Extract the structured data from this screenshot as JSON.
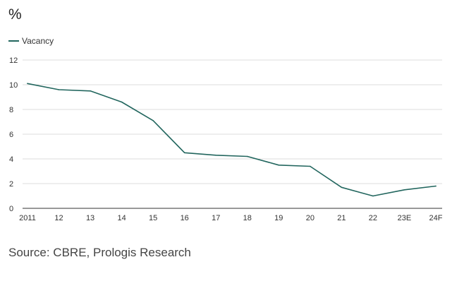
{
  "chart_data": {
    "type": "line",
    "unit_label": "%",
    "categories": [
      "2011",
      "12",
      "13",
      "14",
      "15",
      "16",
      "17",
      "18",
      "19",
      "20",
      "21",
      "22",
      "23E",
      "24F"
    ],
    "series": [
      {
        "name": "Vacancy",
        "color": "#22665e",
        "values": [
          10.1,
          9.6,
          9.5,
          8.6,
          7.1,
          4.5,
          4.3,
          4.2,
          3.5,
          3.4,
          1.7,
          1.0,
          1.5,
          1.8
        ]
      }
    ],
    "yticks": [
      "0",
      "2",
      "4",
      "6",
      "8",
      "10",
      "12"
    ],
    "ylim": [
      0,
      12
    ],
    "grid": true,
    "legend_position": "top-left",
    "source": "Source: CBRE, Prologis Research",
    "colors": {
      "grid": "#dddddd",
      "axis": "#333333",
      "text": "#333333"
    }
  }
}
